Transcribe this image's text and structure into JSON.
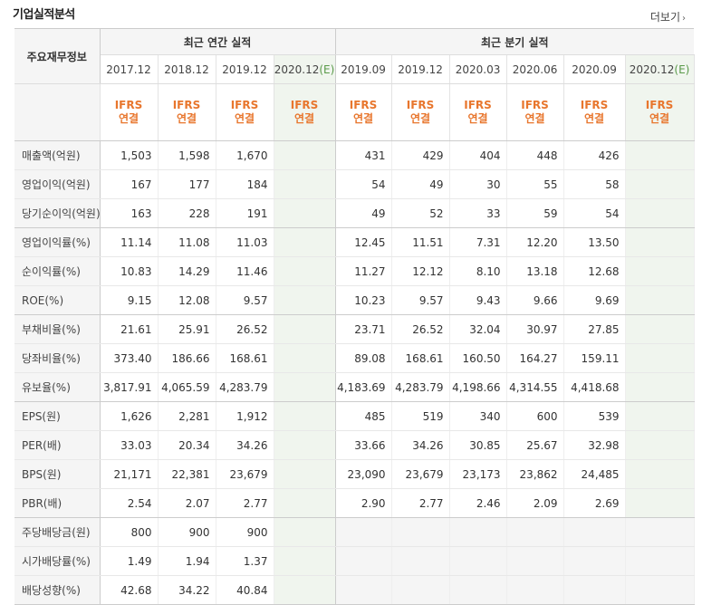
{
  "title": "기업실적분석",
  "more_label": "더보기",
  "header": {
    "label_col": "주요재무정보",
    "annual_group": "최근 연간 실적",
    "quarter_group": "최근 분기 실적",
    "annual_periods": [
      "2017.12",
      "2018.12",
      "2019.12",
      "2020.12"
    ],
    "annual_est_suffix": "(E)",
    "quarter_periods": [
      "2019.09",
      "2019.12",
      "2020.03",
      "2020.06",
      "2020.09",
      "2020.12"
    ],
    "quarter_est_suffix": "(E)",
    "ifrs": "IFRS",
    "consolidated": "연결"
  },
  "rows": [
    {
      "label": "매출액(억원)",
      "annual": [
        "1,503",
        "1,598",
        "1,670",
        ""
      ],
      "quarter": [
        "431",
        "429",
        "404",
        "448",
        "426",
        ""
      ]
    },
    {
      "label": "영업이익(억원)",
      "annual": [
        "167",
        "177",
        "184",
        ""
      ],
      "quarter": [
        "54",
        "49",
        "30",
        "55",
        "58",
        ""
      ]
    },
    {
      "label": "당기순이익(억원)",
      "annual": [
        "163",
        "228",
        "191",
        ""
      ],
      "quarter": [
        "49",
        "52",
        "33",
        "59",
        "54",
        ""
      ]
    },
    {
      "label": "영업이익률(%)",
      "annual": [
        "11.14",
        "11.08",
        "11.03",
        ""
      ],
      "quarter": [
        "12.45",
        "11.51",
        "7.31",
        "12.20",
        "13.50",
        ""
      ]
    },
    {
      "label": "순이익률(%)",
      "annual": [
        "10.83",
        "14.29",
        "11.46",
        ""
      ],
      "quarter": [
        "11.27",
        "12.12",
        "8.10",
        "13.18",
        "12.68",
        ""
      ]
    },
    {
      "label": "ROE(%)",
      "annual": [
        "9.15",
        "12.08",
        "9.57",
        ""
      ],
      "quarter": [
        "10.23",
        "9.57",
        "9.43",
        "9.66",
        "9.69",
        ""
      ]
    },
    {
      "label": "부채비율(%)",
      "annual": [
        "21.61",
        "25.91",
        "26.52",
        ""
      ],
      "quarter": [
        "23.71",
        "26.52",
        "32.04",
        "30.97",
        "27.85",
        ""
      ]
    },
    {
      "label": "당좌비율(%)",
      "annual": [
        "373.40",
        "186.66",
        "168.61",
        ""
      ],
      "quarter": [
        "89.08",
        "168.61",
        "160.50",
        "164.27",
        "159.11",
        ""
      ]
    },
    {
      "label": "유보율(%)",
      "annual": [
        "3,817.91",
        "4,065.59",
        "4,283.79",
        ""
      ],
      "quarter": [
        "4,183.69",
        "4,283.79",
        "4,198.66",
        "4,314.55",
        "4,418.68",
        ""
      ]
    },
    {
      "label": "EPS(원)",
      "annual": [
        "1,626",
        "2,281",
        "1,912",
        ""
      ],
      "quarter": [
        "485",
        "519",
        "340",
        "600",
        "539",
        ""
      ]
    },
    {
      "label": "PER(배)",
      "annual": [
        "33.03",
        "20.34",
        "34.26",
        ""
      ],
      "quarter": [
        "33.66",
        "34.26",
        "30.85",
        "25.67",
        "32.98",
        ""
      ]
    },
    {
      "label": "BPS(원)",
      "annual": [
        "21,171",
        "22,381",
        "23,679",
        ""
      ],
      "quarter": [
        "23,090",
        "23,679",
        "23,173",
        "23,862",
        "24,485",
        ""
      ]
    },
    {
      "label": "PBR(배)",
      "annual": [
        "2.54",
        "2.07",
        "2.77",
        ""
      ],
      "quarter": [
        "2.90",
        "2.77",
        "2.46",
        "2.09",
        "2.69",
        ""
      ]
    },
    {
      "label": "주당배당금(원)",
      "annual": [
        "800",
        "900",
        "900",
        ""
      ],
      "quarter": null
    },
    {
      "label": "시가배당률(%)",
      "annual": [
        "1.49",
        "1.94",
        "1.37",
        ""
      ],
      "quarter": null
    },
    {
      "label": "배당성향(%)",
      "annual": [
        "42.68",
        "34.22",
        "40.84",
        ""
      ],
      "quarter": null
    }
  ]
}
